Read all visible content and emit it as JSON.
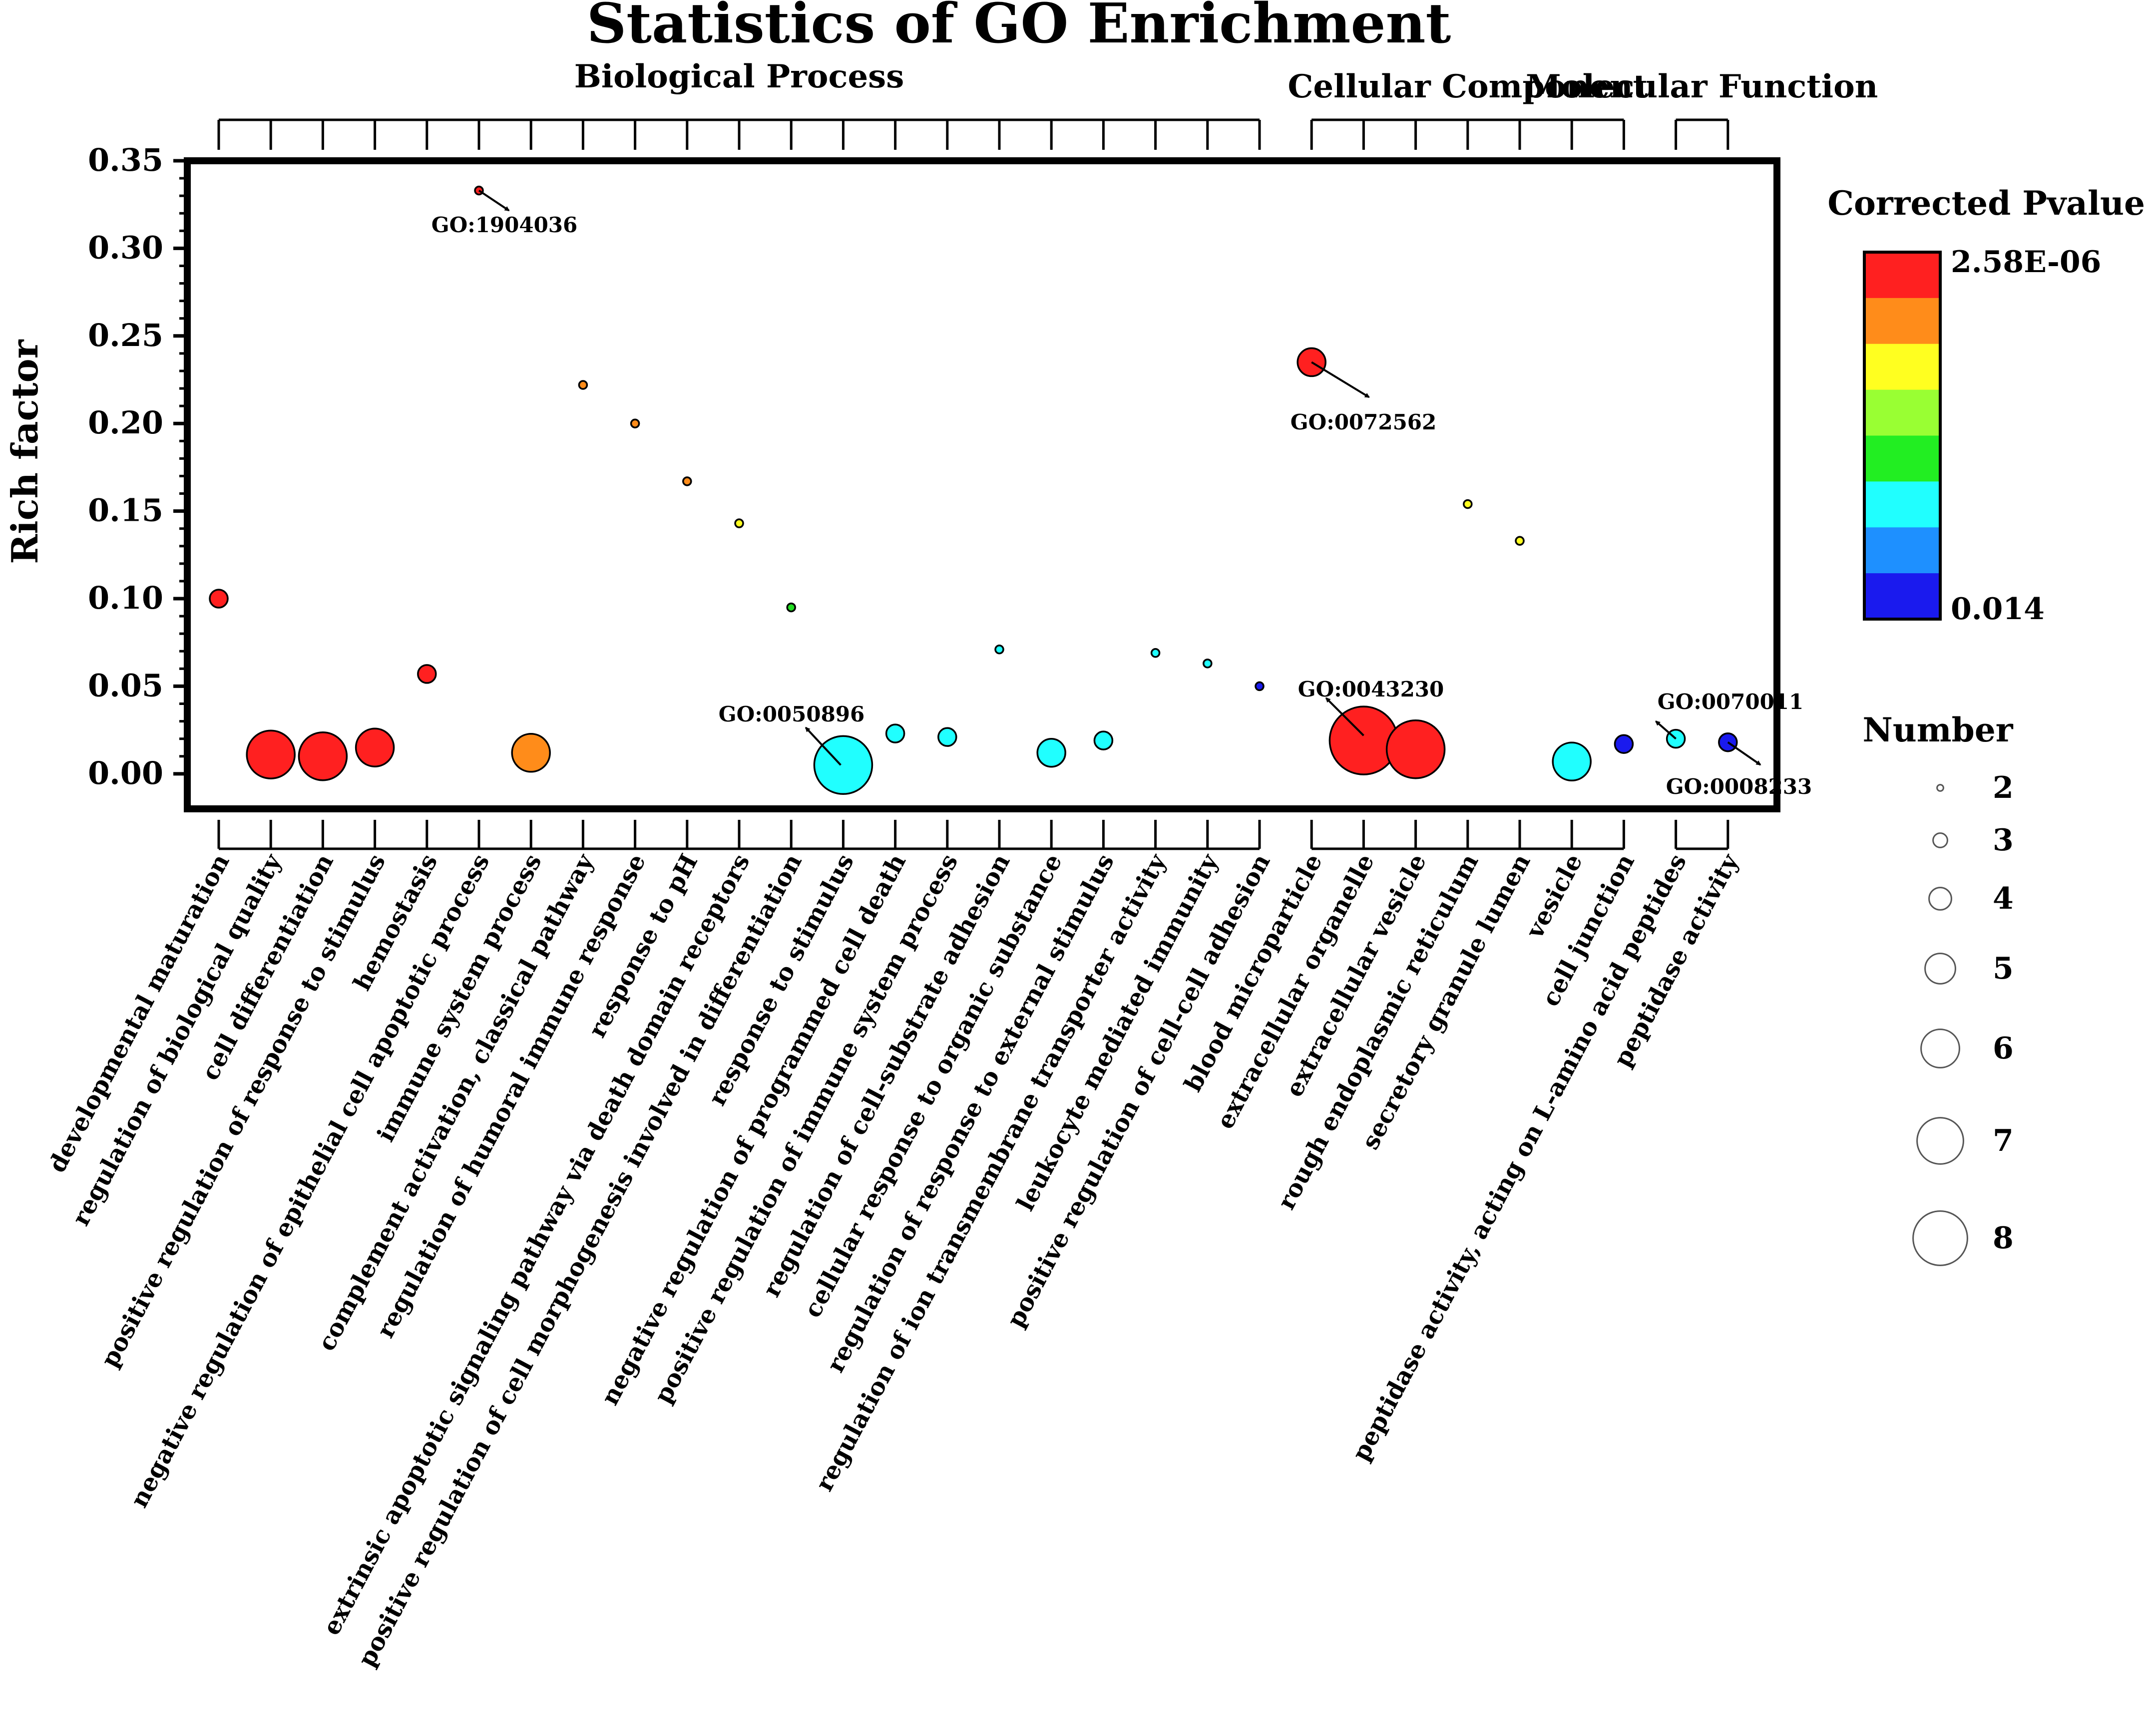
{
  "chart_data": {
    "type": "scatter",
    "title": "Statistics of GO Enrichment",
    "ylabel": "Rich factor",
    "xlabel": "",
    "ylim": [
      -0.02,
      0.35
    ],
    "yticks": [
      0.0,
      0.05,
      0.1,
      0.15,
      0.2,
      0.25,
      0.3,
      0.35
    ],
    "ytick_labels": [
      "0.00",
      "0.05",
      "0.10",
      "0.15",
      "0.20",
      "0.25",
      "0.30",
      "0.35"
    ],
    "groups": [
      {
        "name": "Biological  Process",
        "first": 0,
        "last": 20
      },
      {
        "name": "Cellular Component",
        "first": 21,
        "last": 27
      },
      {
        "name": "Molecular Function",
        "first": 28,
        "last": 29
      }
    ],
    "points": [
      {
        "category": "developmental maturation",
        "rich_factor": 0.1,
        "number": 3,
        "color": "#ff2020"
      },
      {
        "category": "regulation of biological quality",
        "rich_factor": 0.011,
        "number": 6,
        "color": "#ff2020"
      },
      {
        "category": "cell differentiation",
        "rich_factor": 0.01,
        "number": 6,
        "color": "#ff2020"
      },
      {
        "category": "positive regulation of response to stimulus",
        "rich_factor": 0.015,
        "number": 5,
        "color": "#ff2020"
      },
      {
        "category": "hemostasis",
        "rich_factor": 0.057,
        "number": 3,
        "color": "#ff2020"
      },
      {
        "category": "negative regulation of epithelial cell apoptotic process",
        "rich_factor": 0.333,
        "number": 2,
        "color": "#ff2020"
      },
      {
        "category": "immune system process",
        "rich_factor": 0.012,
        "number": 5,
        "color": "#ff8c1a"
      },
      {
        "category": "complement activation, classical pathway",
        "rich_factor": 0.222,
        "number": 2,
        "color": "#ff8c1a"
      },
      {
        "category": "regulation of humoral immune response",
        "rich_factor": 0.2,
        "number": 2,
        "color": "#ff8c1a"
      },
      {
        "category": "response to pH",
        "rich_factor": 0.167,
        "number": 2,
        "color": "#ff8c1a"
      },
      {
        "category": "extrinsic apoptotic signaling pathway via death domain receptors",
        "rich_factor": 0.143,
        "number": 2,
        "color": "#ffff20"
      },
      {
        "category": "positive regulation of cell morphogenesis involved in differentiation",
        "rich_factor": 0.095,
        "number": 2,
        "color": "#22dd22"
      },
      {
        "category": "response to stimulus",
        "rich_factor": 0.005,
        "number": 7,
        "color": "#20ffff"
      },
      {
        "category": "negative regulation of programmed cell death",
        "rich_factor": 0.023,
        "number": 3,
        "color": "#20ffff"
      },
      {
        "category": "positive regulation of immune system process",
        "rich_factor": 0.021,
        "number": 3,
        "color": "#20ffff"
      },
      {
        "category": "regulation of cell-substrate adhesion",
        "rich_factor": 0.071,
        "number": 2,
        "color": "#20ffff"
      },
      {
        "category": "cellular response to organic substance",
        "rich_factor": 0.012,
        "number": 4,
        "color": "#20ffff"
      },
      {
        "category": "regulation of response to external stimulus",
        "rich_factor": 0.019,
        "number": 3,
        "color": "#20ffff"
      },
      {
        "category": "regulation of ion transmembrane transporter activity",
        "rich_factor": 0.069,
        "number": 2,
        "color": "#20ffff"
      },
      {
        "category": "leukocyte mediated immunity",
        "rich_factor": 0.063,
        "number": 2,
        "color": "#20ffff"
      },
      {
        "category": "positive regulation of cell-cell adhesion",
        "rich_factor": 0.05,
        "number": 2,
        "color": "#1a1aee"
      },
      {
        "category": "blood microparticle",
        "rich_factor": 0.235,
        "number": 4,
        "color": "#ff2020"
      },
      {
        "category": "extracellular organelle",
        "rich_factor": 0.019,
        "number": 8,
        "color": "#ff2020"
      },
      {
        "category": "extracellular vesicle",
        "rich_factor": 0.014,
        "number": 7,
        "color": "#ff2020"
      },
      {
        "category": "rough endoplasmic reticulum",
        "rich_factor": 0.154,
        "number": 2,
        "color": "#ffff20"
      },
      {
        "category": "secretory granule lumen",
        "rich_factor": 0.133,
        "number": 2,
        "color": "#ffff20"
      },
      {
        "category": "vesicle",
        "rich_factor": 0.007,
        "number": 5,
        "color": "#20ffff"
      },
      {
        "category": "cell junction",
        "rich_factor": 0.017,
        "number": 3,
        "color": "#1a1aee"
      },
      {
        "category": "peptidase activity, acting on L-amino acid peptides",
        "rich_factor": 0.02,
        "number": 3,
        "color": "#20ffff"
      },
      {
        "category": "peptidase activity",
        "rich_factor": 0.018,
        "number": 3,
        "color": "#1a1aee"
      }
    ],
    "annotations": [
      {
        "text": "GO:1904036",
        "point": 5
      },
      {
        "text": "GO:0072562",
        "point": 21
      },
      {
        "text": "GO:0050896",
        "point": 12
      },
      {
        "text": "GO:0043230",
        "point": 22
      },
      {
        "text": "GO:0070011",
        "point": 28
      },
      {
        "text": "GO:0008233",
        "point": 29
      }
    ],
    "colorbar": {
      "title": "Corrected Pvalue",
      "top_label": "2.58E-06",
      "bottom_label": "0.014",
      "colors": [
        "#ff2020",
        "#ff8c1a",
        "#ffff20",
        "#99ff33",
        "#22ee22",
        "#20ffff",
        "#1e90ff",
        "#1a1aee"
      ]
    },
    "size_legend": {
      "title": "Number",
      "entries": [
        {
          "label": "2",
          "number": 2
        },
        {
          "label": "3",
          "number": 3
        },
        {
          "label": "4",
          "number": 4
        },
        {
          "label": "5",
          "number": 5
        },
        {
          "label": "6",
          "number": 6
        },
        {
          "label": "7",
          "number": 7
        },
        {
          "label": "8",
          "number": 8
        }
      ]
    }
  }
}
